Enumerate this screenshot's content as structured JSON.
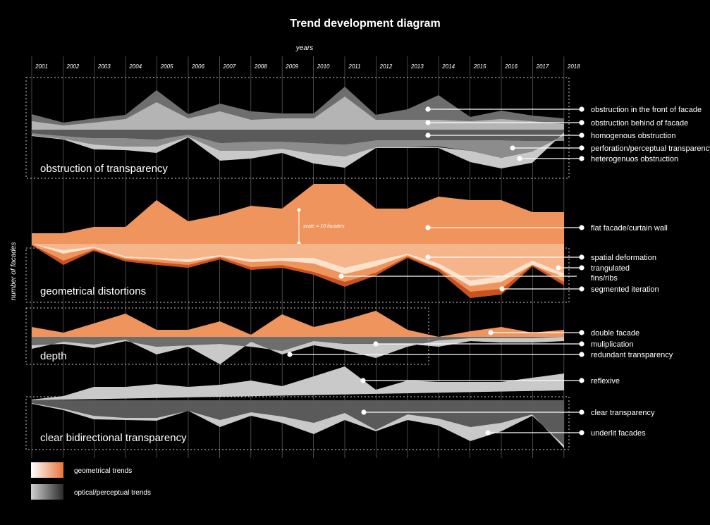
{
  "title": "Trend development diagram",
  "x_axis_label": "years",
  "y_axis_label": "number of facades",
  "scale_note": "scale = 10 facades",
  "years": [
    "2001",
    "2002",
    "2003",
    "2004",
    "2005",
    "2006",
    "2007",
    "2008",
    "2009",
    "2010",
    "2011",
    "2012",
    "2013",
    "2014",
    "2015",
    "2016",
    "2017",
    "2018"
  ],
  "groups": {
    "obstruction": "obstruction of transparency",
    "geometrical": "geometrical distortions",
    "depth": "depth",
    "clear": "clear bidirectional transparency"
  },
  "callouts": {
    "front": "obstruction in the front of facade",
    "behind": "obstruction behind of facade",
    "homog": "homogenous obstruction",
    "perf": "perforation/perceptual transparency",
    "hetero": "heterogenuos obstruction",
    "flat": "flat facade/curtain wall",
    "spatial": "spatial deformation",
    "trang": "trangulated",
    "fins": "fins/ribs",
    "segm": "segmented iteration",
    "double": "double facade",
    "mult": "muliplication",
    "redund": "redundant transparency",
    "reflex": "reflexive",
    "cleart": "clear transparency",
    "underlit": "underlit facades"
  },
  "legend": {
    "geometrical": "geometrical trends",
    "optical": "optical/perceptual trends"
  },
  "colors": {
    "orange": "#f0945e",
    "orange_dark": "#c8531f",
    "orange_light": "#f6b48a",
    "cream": "#fbe2cc",
    "grey_light": "#c9c9c9",
    "grey_mid": "#9a9a9a",
    "grey_dark": "#6e6e6e"
  }
}
